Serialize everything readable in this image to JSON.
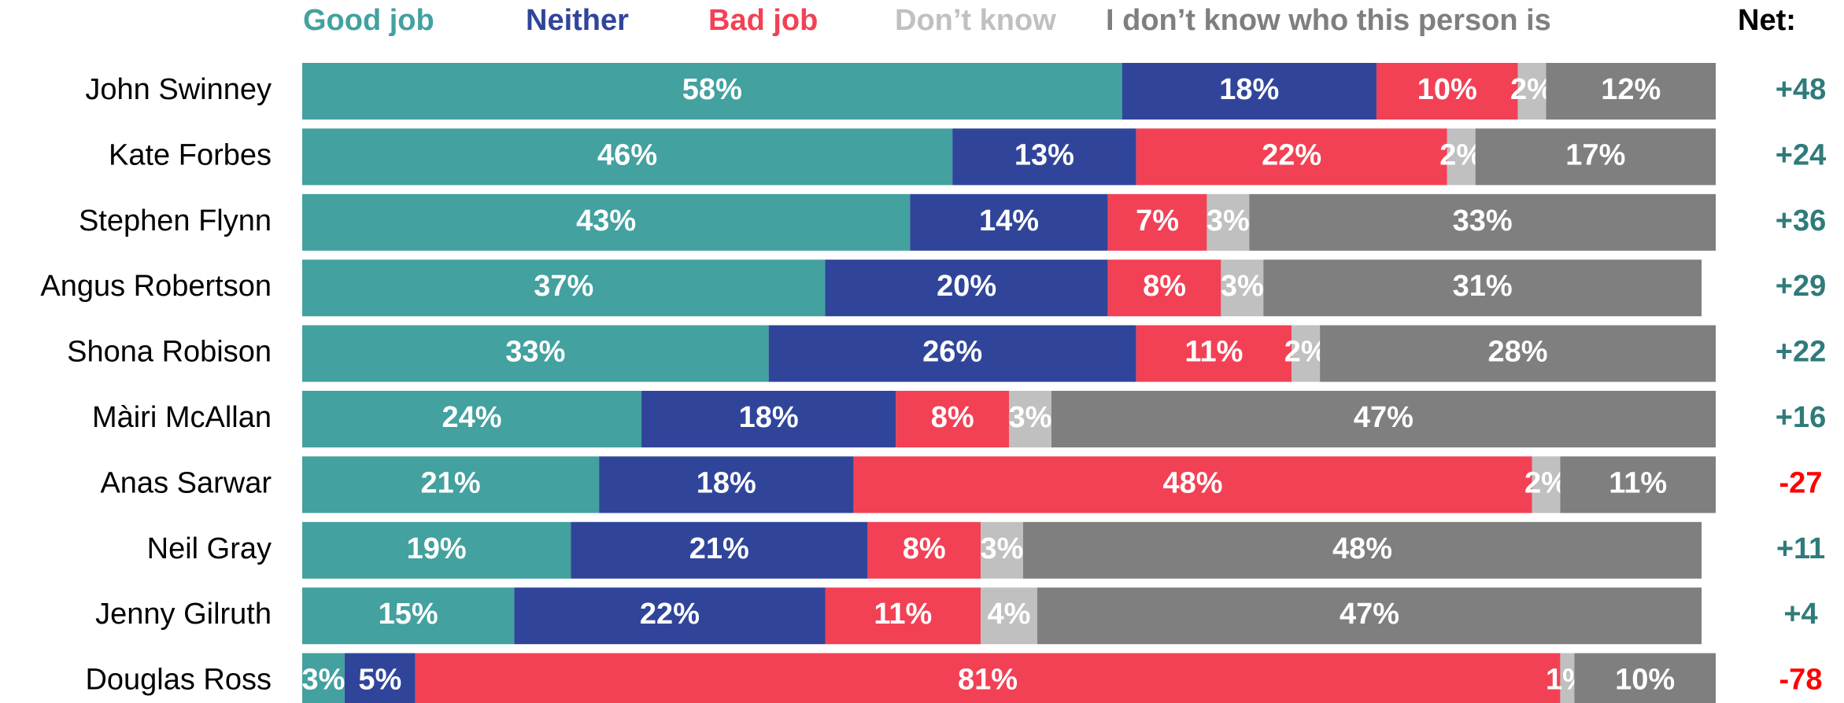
{
  "chart_data": {
    "type": "stacked-bar-horizontal",
    "categories": [
      "John Swinney",
      "Kate Forbes",
      "Stephen Flynn",
      "Angus Robertson",
      "Shona Robison",
      "Màiri McAllan",
      "Anas Sarwar",
      "Neil Gray",
      "Jenny Gilruth",
      "Douglas Ross"
    ],
    "xlim": [
      0,
      100
    ],
    "series": [
      {
        "name": "Good job",
        "color": "#43a19f",
        "values": [
          58,
          46,
          43,
          37,
          33,
          24,
          21,
          19,
          15,
          3
        ],
        "value_labels": [
          "58%",
          "46%",
          "43%",
          "37%",
          "33%",
          "24%",
          "21%",
          "19%",
          "15%",
          "3%"
        ]
      },
      {
        "name": "Neither",
        "color": "#30459a",
        "values": [
          18,
          13,
          14,
          20,
          26,
          18,
          18,
          21,
          22,
          5
        ],
        "value_labels": [
          "18%",
          "13%",
          "14%",
          "20%",
          "26%",
          "18%",
          "18%",
          "21%",
          "22%",
          "5%"
        ]
      },
      {
        "name": "Bad job",
        "color": "#f24155",
        "values": [
          10,
          22,
          7,
          8,
          11,
          8,
          48,
          8,
          11,
          81
        ],
        "value_labels": [
          "10%",
          "22%",
          "7%",
          "8%",
          "11%",
          "8%",
          "48%",
          "8%",
          "11%",
          "81%"
        ]
      },
      {
        "name": "Don’t know",
        "color": "#c0c0c0",
        "values": [
          2,
          2,
          3,
          3,
          2,
          3,
          2,
          3,
          4,
          1
        ],
        "value_labels": [
          "2%",
          "2%",
          "3%",
          "3%",
          "2%",
          "3%",
          "2%",
          "3%",
          "4%",
          "1%"
        ]
      },
      {
        "name": "I don’t know who this person is",
        "color": "#7f7f7f",
        "values": [
          12,
          17,
          33,
          31,
          28,
          47,
          11,
          48,
          47,
          10
        ],
        "value_labels": [
          "12%",
          "17%",
          "33%",
          "31%",
          "28%",
          "47%",
          "11%",
          "48%",
          "47%",
          "10%"
        ]
      }
    ],
    "net": {
      "title": "Net:",
      "positive_color": "#2f7b7a",
      "negative_color": "#ff0000",
      "values": [
        48,
        24,
        36,
        29,
        22,
        16,
        -27,
        11,
        4,
        -78
      ],
      "value_labels": [
        "+48",
        "+24",
        "+36",
        "+29",
        "+22",
        "+16",
        "-27",
        "+11",
        "+4",
        "-78"
      ]
    }
  }
}
